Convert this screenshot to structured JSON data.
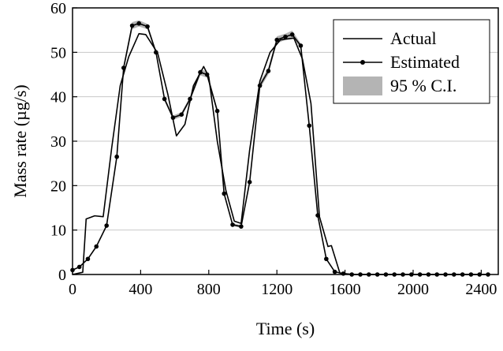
{
  "chart_data": {
    "type": "line",
    "xlabel": "Time (s)",
    "ylabel": "Mass rate (µg/s)",
    "xlim": [
      0,
      2500
    ],
    "ylim": [
      0,
      60
    ],
    "xticks": [
      0,
      400,
      800,
      1200,
      1600,
      2000,
      2400
    ],
    "yticks": [
      0,
      10,
      20,
      30,
      40,
      50,
      60
    ],
    "grid": "horizontal",
    "legend": {
      "placement": "top-right",
      "entries": [
        "Actual",
        "Estimated",
        "95 % C.I."
      ]
    },
    "series": [
      {
        "name": "Actual",
        "style": "line",
        "color": "#000000",
        "x": [
          0,
          60,
          80,
          130,
          180,
          230,
          280,
          330,
          390,
          430,
          500,
          560,
          610,
          660,
          710,
          770,
          800,
          850,
          900,
          950,
          990,
          1040,
          1100,
          1160,
          1220,
          1300,
          1350,
          1400,
          1450,
          1500,
          1520,
          1570,
          1600,
          1650,
          2450
        ],
        "y": [
          0,
          0.5,
          12.5,
          13.2,
          13.0,
          28.5,
          42.5,
          49.0,
          54.2,
          54.0,
          49.8,
          40.5,
          31.2,
          33.8,
          42.5,
          46.8,
          44.5,
          30.0,
          19.0,
          12.0,
          11.5,
          28.0,
          43.5,
          50.0,
          52.8,
          53.2,
          48.5,
          38.5,
          13.0,
          6.3,
          6.5,
          0.3,
          0.2,
          0,
          0
        ]
      },
      {
        "name": "Estimated",
        "style": "line-markers",
        "color": "#000000",
        "x": [
          0,
          40,
          90,
          140,
          200,
          260,
          300,
          350,
          390,
          440,
          490,
          540,
          590,
          640,
          690,
          750,
          790,
          850,
          890,
          940,
          990,
          1040,
          1100,
          1150,
          1200,
          1250,
          1290,
          1340,
          1390,
          1440,
          1490,
          1540,
          1590,
          1640,
          1690,
          1740,
          1790,
          1840,
          1890,
          1940,
          1990,
          2040,
          2090,
          2140,
          2190,
          2240,
          2290,
          2340,
          2390,
          2440
        ],
        "y": [
          1.0,
          1.7,
          3.5,
          6.3,
          11.0,
          26.5,
          46.5,
          56.0,
          56.5,
          55.8,
          50.0,
          39.5,
          35.3,
          36.0,
          39.5,
          45.5,
          45.0,
          36.8,
          18.2,
          11.2,
          10.8,
          20.8,
          42.5,
          45.8,
          52.8,
          53.5,
          54.0,
          51.5,
          33.5,
          13.3,
          3.5,
          0.6,
          0.2,
          0,
          0,
          0,
          0,
          0,
          0,
          0,
          0,
          0,
          0,
          0,
          0,
          0,
          0,
          0,
          0,
          0
        ]
      }
    ],
    "confidence_band": {
      "name": "95 % C.I.",
      "color": "#b4b4b4",
      "x": [
        300,
        350,
        390,
        440,
        490,
        540,
        590,
        640,
        690,
        750,
        790,
        850,
        890,
        940,
        990,
        1040,
        1100,
        1150,
        1200,
        1250,
        1290,
        1340
      ],
      "lower": [
        45.8,
        55.2,
        55.8,
        55.2,
        49.5,
        39.0,
        34.8,
        35.5,
        39.0,
        44.8,
        44.3,
        36.2,
        17.8,
        10.9,
        10.5,
        20.3,
        41.8,
        45.0,
        52.0,
        52.8,
        53.3,
        51.0
      ],
      "upper": [
        47.2,
        56.8,
        57.2,
        56.4,
        50.5,
        40.0,
        35.8,
        36.5,
        40.0,
        46.2,
        45.7,
        37.4,
        18.6,
        11.5,
        11.1,
        21.3,
        43.2,
        46.6,
        53.6,
        54.2,
        54.9,
        52.0
      ]
    }
  }
}
